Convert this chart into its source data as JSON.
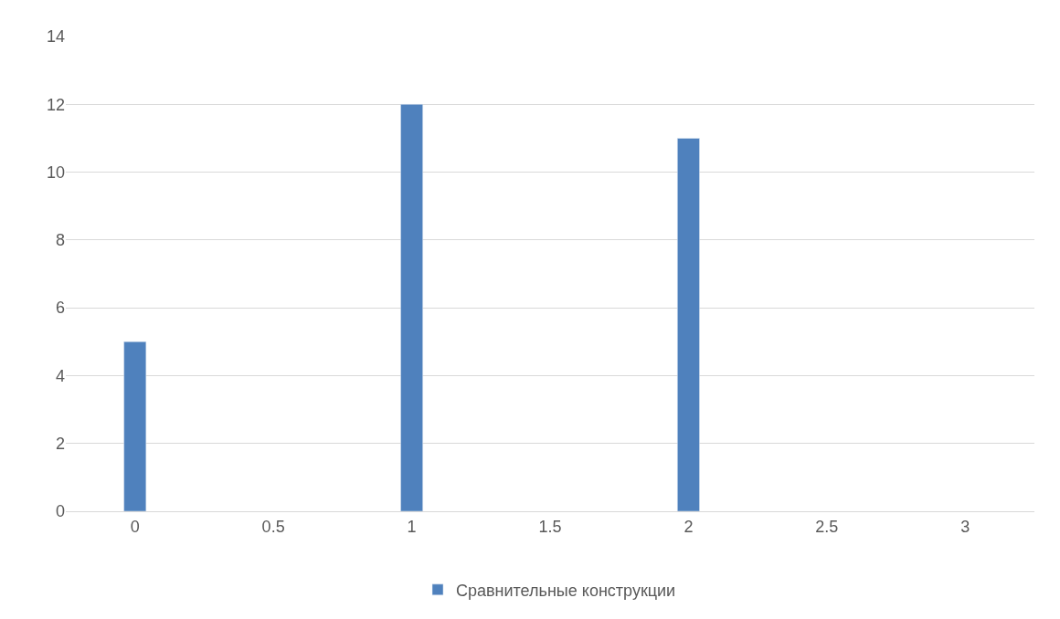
{
  "chart_data": {
    "type": "bar",
    "categories": [
      "0",
      "0.5",
      "1",
      "1.5",
      "2",
      "2.5",
      "3"
    ],
    "series": [
      {
        "name": "Сравнительные конструкции",
        "color": "#4f81bd",
        "values": [
          5,
          null,
          12,
          null,
          11,
          null,
          null
        ]
      }
    ],
    "ylim": [
      0,
      14
    ],
    "yticks": [
      0,
      2,
      4,
      6,
      8,
      10,
      12,
      14
    ],
    "grid": "y",
    "legend": "bottom"
  }
}
